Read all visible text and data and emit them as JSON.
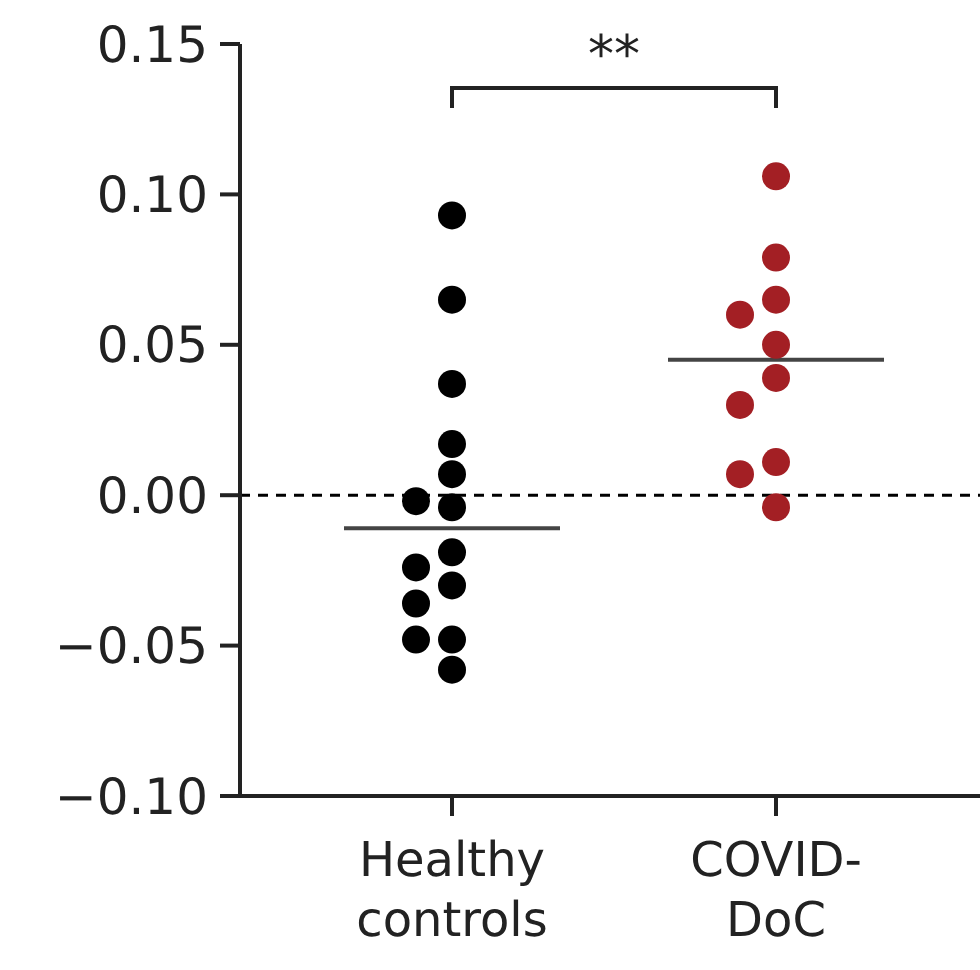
{
  "chart_data": {
    "type": "scatter",
    "categories": [
      "Healthy controls",
      "COVID-DoC"
    ],
    "series": [
      {
        "color": "#000000",
        "x": [
          "Healthy controls",
          "Healthy controls",
          "Healthy controls",
          "Healthy controls",
          "Healthy controls",
          "Healthy controls",
          "Healthy controls",
          "Healthy controls",
          "Healthy controls",
          "Healthy controls",
          "Healthy controls",
          "Healthy controls",
          "Healthy controls",
          "Healthy controls"
        ],
        "values": [
          0.093,
          0.065,
          0.037,
          0.017,
          0.007,
          -0.002,
          -0.004,
          -0.019,
          -0.024,
          -0.03,
          -0.036,
          -0.048,
          -0.048,
          -0.058
        ]
      },
      {
        "color": "#a31f24",
        "x": [
          "COVID-DoC",
          "COVID-DoC",
          "COVID-DoC",
          "COVID-DoC",
          "COVID-DoC",
          "COVID-DoC",
          "COVID-DoC",
          "COVID-DoC",
          "COVID-DoC",
          "COVID-DoC"
        ],
        "values": [
          0.106,
          0.079,
          0.065,
          0.06,
          0.05,
          0.039,
          0.03,
          0.011,
          0.007,
          -0.004
        ]
      }
    ],
    "ylim": [
      -0.1,
      0.15
    ],
    "yticks": [
      {
        "value": -0.1,
        "label": "−0.10"
      },
      {
        "value": -0.05,
        "label": "−0.05"
      },
      {
        "value": 0,
        "label": "0.00"
      },
      {
        "value": 0.05,
        "label": "0.05"
      },
      {
        "value": 0.1,
        "label": "0.10"
      },
      {
        "value": 0.15,
        "label": "0.15"
      }
    ],
    "ref_lines": [
      {
        "axis": "y",
        "value": 0,
        "line_style": "dashed",
        "color": "#000000"
      },
      {
        "axis": "y",
        "value": -0.011,
        "color": "#444444"
      },
      {
        "axis": "y",
        "value": 0.045,
        "color": "#444444"
      }
    ],
    "annotations": [
      "**"
    ],
    "marker": "circle",
    "grid": false
  }
}
